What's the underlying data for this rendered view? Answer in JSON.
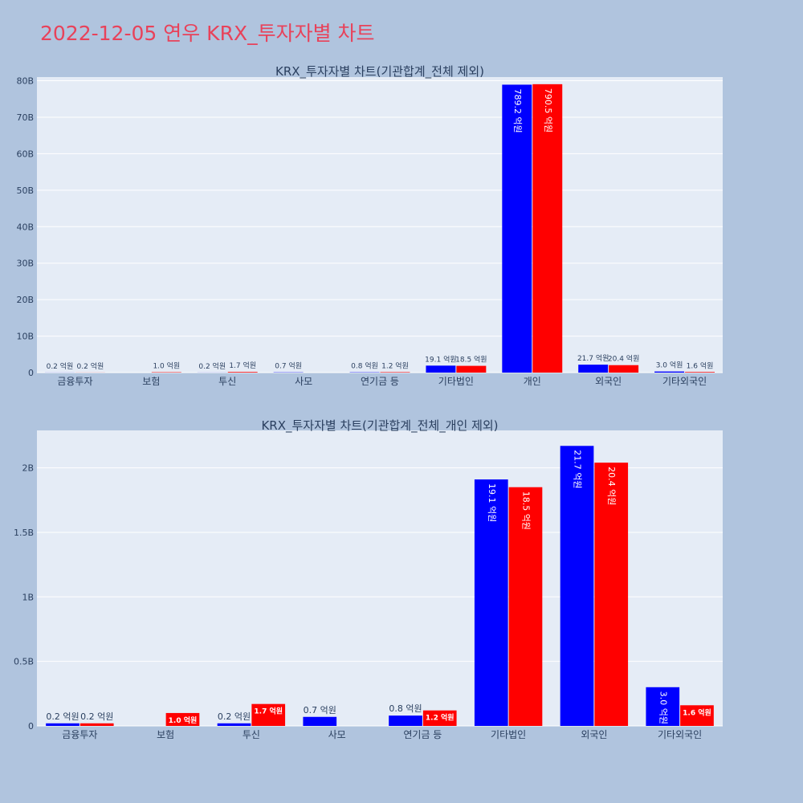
{
  "page_title": "2022-12-05 연우 KRX_투자자별 차트",
  "colors": {
    "series_a": "#0000ff",
    "series_b": "#ff0000",
    "plot_bg": "#e5ecf6",
    "page_bg": "#b0c4de",
    "title": "#e8425a"
  },
  "chart_data": [
    {
      "type": "bar",
      "title": "KRX_투자자별 차트(기관합계_전체 제외)",
      "categories": [
        "금융투자",
        "보험",
        "투신",
        "사모",
        "연기금 등",
        "기타법인",
        "개인",
        "외국인",
        "기타외국인"
      ],
      "series": [
        {
          "color": "#0000ff",
          "values": [
            20000000,
            0,
            20000000,
            70000000,
            80000000,
            1910000000,
            78920000000,
            2170000000,
            300000000
          ],
          "labels": [
            "0.2 억원",
            "",
            "0.2 억원",
            "0.7 억원",
            "0.8 억원",
            "19.1 억원",
            "789.2 억원",
            "21.7 억원",
            "3.0 억원"
          ]
        },
        {
          "color": "#ff0000",
          "values": [
            20000000,
            100000000,
            170000000,
            0,
            120000000,
            1850000000,
            79050000000,
            2040000000,
            160000000
          ],
          "labels": [
            "0.2 억원",
            "1.0 억원",
            "1.7 억원",
            "",
            "1.2 억원",
            "18.5 억원",
            "790.5 억원",
            "20.4 억원",
            "1.6 억원"
          ]
        }
      ],
      "yticks": [
        0,
        10000000000,
        20000000000,
        30000000000,
        40000000000,
        50000000000,
        60000000000,
        70000000000,
        80000000000
      ],
      "ytick_labels": [
        "0",
        "10B",
        "20B",
        "30B",
        "40B",
        "50B",
        "60B",
        "70B",
        "80B"
      ],
      "ylim": [
        0,
        81000000000
      ],
      "grid": true
    },
    {
      "type": "bar",
      "title": "KRX_투자자별 차트(기관합계_전체_개인 제외)",
      "categories": [
        "금융투자",
        "보험",
        "투신",
        "사모",
        "연기금 등",
        "기타법인",
        "외국인",
        "기타외국인"
      ],
      "series": [
        {
          "color": "#0000ff",
          "values": [
            20000000,
            0,
            20000000,
            70000000,
            80000000,
            1910000000,
            2170000000,
            300000000
          ],
          "labels": [
            "0.2 억원",
            "",
            "0.2 억원",
            "0.7 억원",
            "0.8 억원",
            "19.1 억원",
            "21.7 억원",
            "3.0 억원"
          ]
        },
        {
          "color": "#ff0000",
          "values": [
            20000000,
            100000000,
            170000000,
            0,
            120000000,
            1850000000,
            2040000000,
            160000000
          ],
          "labels": [
            "0.2 억원",
            "1.0 억원",
            "1.7 억원",
            "",
            "1.2 억원",
            "18.5 억원",
            "20.4 억원",
            "1.6 억원"
          ]
        }
      ],
      "yticks": [
        0,
        500000000,
        1000000000,
        1500000000,
        2000000000
      ],
      "ytick_labels": [
        "0",
        "0.5B",
        "1B",
        "1.5B",
        "2B"
      ],
      "ylim": [
        0,
        2290000000
      ],
      "grid": true
    }
  ]
}
